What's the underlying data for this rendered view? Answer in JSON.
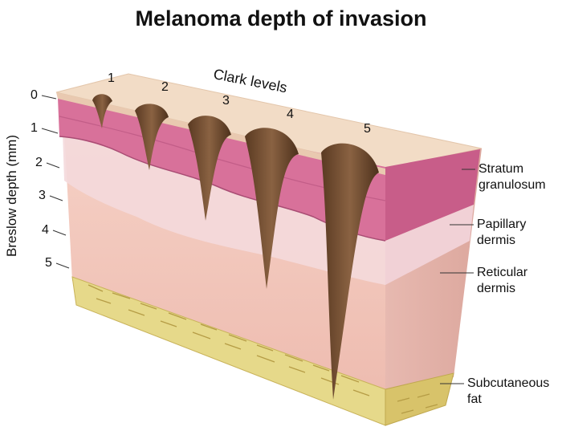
{
  "title": "Melanoma depth of invasion",
  "breslow_axis": {
    "label": "Breslow depth (mm)",
    "ticks": [
      "0",
      "1",
      "2",
      "3",
      "4",
      "5"
    ]
  },
  "clark_axis": {
    "label": "Clark levels",
    "levels": [
      "1",
      "2",
      "3",
      "4",
      "5"
    ]
  },
  "layers": [
    {
      "line1": "Stratum",
      "line2": "granulosum"
    },
    {
      "line1": "Papillary",
      "line2": "dermis"
    },
    {
      "line1": "Reticular",
      "line2": "dermis"
    },
    {
      "line1": "Subcutaneous",
      "line2": "fat"
    }
  ],
  "colors": {
    "epidermis_top": "#f2dcc6",
    "stratum": "#d8719a",
    "papillary": "#f3cfd6",
    "reticular": "#f0c2b8",
    "fat": "#e6d98a",
    "tumor": "#6e4a30"
  }
}
